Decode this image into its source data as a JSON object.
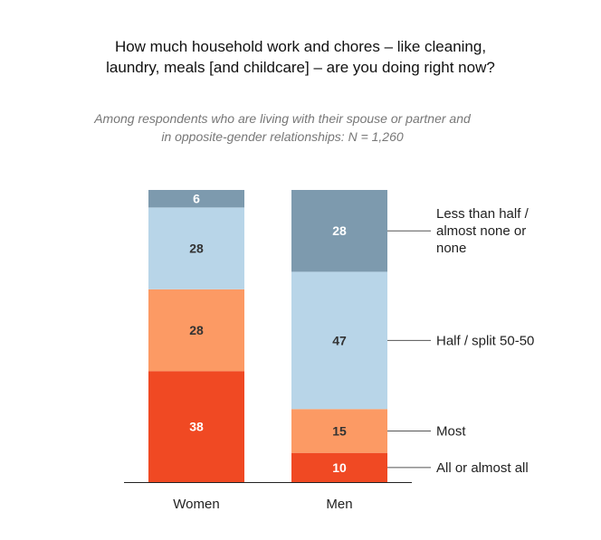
{
  "title_lines": [
    "How much household work and chores – like cleaning,",
    "laundry, meals [and childcare] – are you doing right now?"
  ],
  "subtitle_lines": [
    "Among respondents who are living with their spouse or partner and",
    "in opposite-gender relationships: N = 1,260"
  ],
  "chart_data": {
    "type": "bar",
    "stacked": true,
    "categories": [
      "Women",
      "Men"
    ],
    "series": [
      {
        "name": "All or almost all",
        "values": [
          38,
          10
        ],
        "color": "#f04923",
        "label_color": "#ffffff"
      },
      {
        "name": "Most",
        "values": [
          28,
          15
        ],
        "color": "#fc9a64",
        "label_color": "#333333"
      },
      {
        "name": "Half / split 50-50",
        "values": [
          28,
          47
        ],
        "color": "#b8d5e8",
        "label_color": "#333333"
      },
      {
        "name": "Less than half / almost none or none",
        "values": [
          6,
          28
        ],
        "color": "#7d9aae",
        "label_color": "#ffffff"
      }
    ],
    "legend_lines": [
      [
        "All or almost all"
      ],
      [
        "Most"
      ],
      [
        "Half / split 50-50"
      ],
      [
        "Less than half /",
        "almost none or",
        "none"
      ]
    ],
    "ylim": [
      0,
      100
    ],
    "legend_position": "right, labels aligned to Men bar segments",
    "grid": false
  }
}
